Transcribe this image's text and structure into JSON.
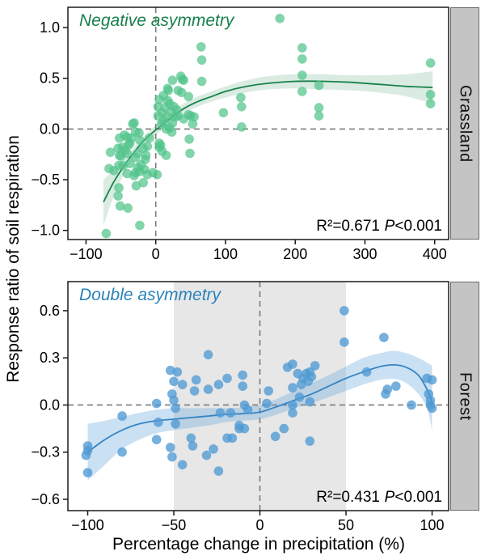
{
  "figure": {
    "y_axis_title": "Response ratio of soil respiration",
    "x_axis_title": "Percentage change in precipitation (%)"
  },
  "panels": [
    {
      "title": "Negative asymmetry",
      "title_color": "#17804b",
      "strip": "Grassland",
      "stats_r2": "R²=0.671",
      "stats_p": "P",
      "stats_pv": "<0.001"
    },
    {
      "title": "Double asymmetry",
      "title_color": "#2b82ba",
      "strip": "Forest",
      "stats_r2": "R²=0.431",
      "stats_p": "P",
      "stats_pv": "<0.001"
    }
  ],
  "chart_data": [
    {
      "type": "scatter",
      "name": "Grassland",
      "title": "Negative asymmetry",
      "xlabel": "Percentage change in precipitation (%)",
      "ylabel": "Response ratio of soil respiration",
      "stats": "R²=0.671 P<0.001",
      "xlim": [
        -126,
        420
      ],
      "ylim": [
        -1.09,
        1.2
      ],
      "x_ticks": {
        "values": [
          -100,
          0,
          100,
          200,
          300,
          400
        ],
        "labels": [
          "−100",
          "0",
          "100",
          "200",
          "300",
          "400"
        ]
      },
      "y_ticks": {
        "values": [
          -1.0,
          -0.5,
          0.0,
          0.5,
          1.0
        ],
        "labels": [
          "−1.0",
          "−0.5",
          "0.0",
          "0.5",
          "1.0"
        ]
      },
      "zero_lines": true,
      "point_color": "#52c48b",
      "point_opacity": 0.72,
      "line_color": "#17834b",
      "band_color": "rgba(23,131,75,0.16)",
      "points": [
        [
          -71,
          -1.03
        ],
        [
          -23,
          -0.95
        ],
        [
          -51,
          -0.76
        ],
        [
          -40,
          -0.78
        ],
        [
          -54,
          -0.66
        ],
        [
          -28,
          -0.56
        ],
        [
          -53,
          -0.58
        ],
        [
          -18,
          -0.53
        ],
        [
          -31,
          -0.46
        ],
        [
          -23,
          -0.42
        ],
        [
          -12,
          -0.45
        ],
        [
          -4,
          -0.43
        ],
        [
          2,
          -0.45
        ],
        [
          -29,
          -0.43
        ],
        [
          -41,
          -0.44
        ],
        [
          -37,
          -0.34
        ],
        [
          -47,
          -0.36
        ],
        [
          -26,
          -0.38
        ],
        [
          -16,
          -0.4
        ],
        [
          -60,
          -0.41
        ],
        [
          -67,
          -0.39
        ],
        [
          -53,
          -0.36
        ],
        [
          -50,
          -0.27
        ],
        [
          -54,
          -0.19
        ],
        [
          -65,
          -0.23
        ],
        [
          -44,
          -0.21
        ],
        [
          -39,
          -0.16
        ],
        [
          -21,
          -0.35
        ],
        [
          -26,
          -0.24
        ],
        [
          -18,
          -0.19
        ],
        [
          -14,
          -0.26
        ],
        [
          -12,
          -0.17
        ],
        [
          -41,
          -0.24
        ],
        [
          -48,
          -0.18
        ],
        [
          -37,
          -0.14
        ],
        [
          -29,
          -0.28
        ],
        [
          -52,
          -0.26
        ],
        [
          -15,
          -0.3
        ],
        [
          -52,
          -0.09
        ],
        [
          -45,
          -0.06
        ],
        [
          -35,
          -0.09
        ],
        [
          -29,
          -0.03
        ],
        [
          -33,
          0.05
        ],
        [
          -23,
          -0.11
        ],
        [
          -9,
          -0.09
        ],
        [
          -41,
          -0.08
        ],
        [
          -24,
          -0.04
        ],
        [
          -31,
          0.06
        ],
        [
          5,
          -0.18
        ],
        [
          9,
          -0.22
        ],
        [
          15,
          -0.26
        ],
        [
          7,
          -0.16
        ],
        [
          5,
          -0.14
        ],
        [
          23,
          -0.03
        ],
        [
          15,
          0.0
        ],
        [
          20,
          0.01
        ],
        [
          48,
          -0.1
        ],
        [
          49,
          -0.24
        ],
        [
          3,
          0.13
        ],
        [
          3,
          0.22
        ],
        [
          5,
          0.29
        ],
        [
          9,
          0.16
        ],
        [
          11,
          0.08
        ],
        [
          11,
          0.33
        ],
        [
          13,
          0.21
        ],
        [
          16,
          0.12
        ],
        [
          17,
          0.28
        ],
        [
          18,
          0.38
        ],
        [
          22,
          0.17
        ],
        [
          24,
          0.06
        ],
        [
          26,
          0.22
        ],
        [
          28,
          0.12
        ],
        [
          32,
          0.13
        ],
        [
          37,
          0.36
        ],
        [
          40,
          0.1
        ],
        [
          47,
          0.14
        ],
        [
          55,
          0.12
        ],
        [
          8,
          0.05
        ],
        [
          20,
          0.25
        ],
        [
          30,
          0.19
        ],
        [
          53,
          0.05
        ],
        [
          24,
          0.48
        ],
        [
          36,
          0.52
        ],
        [
          40,
          0.48
        ],
        [
          17,
          0.4
        ],
        [
          32,
          0.38
        ],
        [
          47,
          0.32
        ],
        [
          65,
          0.81
        ],
        [
          66,
          0.68
        ],
        [
          66,
          0.47
        ],
        [
          38,
          0.49
        ],
        [
          50,
          0.13
        ],
        [
          97,
          0.16
        ],
        [
          122,
          0.31
        ],
        [
          123,
          0.22
        ],
        [
          123,
          0.02
        ],
        [
          178,
          1.09
        ],
        [
          210,
          0.8
        ],
        [
          210,
          0.69
        ],
        [
          210,
          0.53
        ],
        [
          210,
          0.37
        ],
        [
          234,
          0.43
        ],
        [
          234,
          0.21
        ],
        [
          234,
          0.13
        ],
        [
          394,
          0.65
        ],
        [
          394,
          0.34
        ],
        [
          394,
          0.25
        ]
      ],
      "fit_curve": {
        "x": [
          -75,
          -60,
          -45,
          -30,
          -15,
          0,
          20,
          40,
          60,
          80,
          100,
          130,
          160,
          200,
          240,
          280,
          320,
          360,
          397
        ],
        "y": [
          -0.72,
          -0.52,
          -0.36,
          -0.22,
          -0.1,
          -0.01,
          0.1,
          0.2,
          0.27,
          0.32,
          0.37,
          0.42,
          0.45,
          0.47,
          0.47,
          0.46,
          0.44,
          0.42,
          0.41
        ]
      },
      "ci_band": {
        "x": [
          -75,
          -60,
          -45,
          -30,
          -15,
          0,
          20,
          40,
          60,
          80,
          100,
          130,
          160,
          200,
          240,
          280,
          320,
          360,
          397
        ],
        "upper": [
          -0.5,
          -0.4,
          -0.3,
          -0.17,
          -0.06,
          0.04,
          0.15,
          0.25,
          0.32,
          0.37,
          0.42,
          0.48,
          0.52,
          0.54,
          0.54,
          0.53,
          0.53,
          0.54,
          0.57
        ],
        "lower": [
          -0.95,
          -0.66,
          -0.44,
          -0.28,
          -0.15,
          -0.06,
          0.05,
          0.15,
          0.22,
          0.27,
          0.31,
          0.36,
          0.39,
          0.4,
          0.39,
          0.38,
          0.36,
          0.32,
          0.25
        ]
      }
    },
    {
      "type": "scatter",
      "name": "Forest",
      "title": "Double asymmetry",
      "xlabel": "Percentage change in precipitation (%)",
      "ylabel": "Response ratio of soil respiration",
      "stats": "R²=0.431 P<0.001",
      "xlim": [
        -111.5,
        109.6
      ],
      "ylim": [
        -0.672,
        0.785
      ],
      "x_ticks": {
        "values": [
          -100,
          -50,
          0,
          50,
          100
        ],
        "labels": [
          "−100",
          "−50",
          "0",
          "50",
          "100"
        ]
      },
      "y_ticks": {
        "values": [
          -0.6,
          -0.3,
          0.0,
          0.3,
          0.6
        ],
        "labels": [
          "−0.6",
          "−0.3",
          "0.0",
          "0.3",
          "0.6"
        ]
      },
      "zero_lines": true,
      "shaded_region_x": [
        -50,
        50
      ],
      "shaded_region_color": "#e7e7e7",
      "point_color": "#4f9ad4",
      "point_opacity": 0.78,
      "line_color": "#3585c4",
      "band_color": "rgba(90,160,218,0.32)",
      "points": [
        [
          -100,
          -0.26
        ],
        [
          -100,
          -0.29
        ],
        [
          -101,
          -0.32
        ],
        [
          -100,
          -0.43
        ],
        [
          -80,
          -0.07
        ],
        [
          -80,
          -0.3
        ],
        [
          -60,
          0.01
        ],
        [
          -59,
          -0.11
        ],
        [
          -60,
          -0.22
        ],
        [
          -52,
          0.22
        ],
        [
          -48,
          0.21
        ],
        [
          -50,
          0.15
        ],
        [
          -45,
          0.13
        ],
        [
          -51,
          0.07
        ],
        [
          -50,
          0.03
        ],
        [
          -49,
          -0.02
        ],
        [
          -49,
          -0.12
        ],
        [
          -52,
          -0.27
        ],
        [
          -51,
          -0.33
        ],
        [
          -45,
          -0.38
        ],
        [
          -37,
          0.16
        ],
        [
          -38,
          0.09
        ],
        [
          -30,
          0.1
        ],
        [
          -24,
          0.13
        ],
        [
          -19,
          0.17
        ],
        [
          -30,
          0.32
        ],
        [
          -10,
          0.19
        ],
        [
          -10,
          0.12
        ],
        [
          -9,
          0.0
        ],
        [
          -7,
          -0.03
        ],
        [
          -23,
          -0.05
        ],
        [
          -17,
          -0.05
        ],
        [
          -12,
          -0.13
        ],
        [
          -19,
          -0.21
        ],
        [
          -16,
          -0.21
        ],
        [
          -12,
          -0.15
        ],
        [
          -9,
          -0.15
        ],
        [
          -40,
          -0.21
        ],
        [
          -39,
          -0.26
        ],
        [
          -31,
          -0.32
        ],
        [
          -27,
          -0.28
        ],
        [
          -24,
          -0.42
        ],
        [
          5,
          0.09
        ],
        [
          4,
          0.01
        ],
        [
          9,
          -0.2
        ],
        [
          14,
          -0.15
        ],
        [
          16,
          0.24
        ],
        [
          19,
          0.26
        ],
        [
          22,
          0.2
        ],
        [
          24,
          0.13
        ],
        [
          19,
          0.11
        ],
        [
          25,
          0.17
        ],
        [
          27,
          0.2
        ],
        [
          29,
          0.21
        ],
        [
          28,
          0.15
        ],
        [
          30,
          0.18
        ],
        [
          32,
          0.25
        ],
        [
          19,
          0.0
        ],
        [
          19,
          -0.05
        ],
        [
          23,
          0.05
        ],
        [
          29,
          0.02
        ],
        [
          29,
          -0.23
        ],
        [
          49,
          0.6
        ],
        [
          49,
          0.4
        ],
        [
          62,
          0.21
        ],
        [
          72,
          0.43
        ],
        [
          73,
          0.07
        ],
        [
          74,
          0.1
        ],
        [
          79,
          0.12
        ],
        [
          88,
          0.0
        ],
        [
          97,
          0.17
        ],
        [
          100,
          0.16
        ],
        [
          98,
          0.07
        ],
        [
          99,
          0.03
        ],
        [
          99,
          0.0
        ],
        [
          100,
          -0.02
        ]
      ],
      "fit_curve": {
        "x": [
          -100,
          -90,
          -80,
          -70,
          -60,
          -50,
          -40,
          -30,
          -20,
          -10,
          0,
          10,
          20,
          30,
          40,
          50,
          60,
          70,
          78,
          85,
          92,
          97,
          100
        ],
        "y": [
          -0.3,
          -0.22,
          -0.16,
          -0.12,
          -0.1,
          -0.09,
          -0.08,
          -0.07,
          -0.06,
          -0.055,
          -0.045,
          -0.01,
          0.03,
          0.07,
          0.12,
          0.17,
          0.21,
          0.245,
          0.255,
          0.24,
          0.19,
          0.1,
          0.02
        ]
      },
      "ci_band": {
        "x": [
          -100,
          -90,
          -80,
          -70,
          -60,
          -50,
          -40,
          -30,
          -20,
          -10,
          0,
          10,
          20,
          30,
          40,
          50,
          60,
          70,
          78,
          85,
          92,
          97,
          100
        ],
        "upper": [
          -0.12,
          -0.1,
          -0.075,
          -0.05,
          -0.03,
          -0.02,
          -0.02,
          -0.02,
          -0.02,
          -0.015,
          0.0,
          0.04,
          0.09,
          0.14,
          0.19,
          0.245,
          0.3,
          0.33,
          0.345,
          0.33,
          0.3,
          0.27,
          0.25
        ],
        "lower": [
          -0.48,
          -0.38,
          -0.28,
          -0.22,
          -0.18,
          -0.16,
          -0.145,
          -0.13,
          -0.11,
          -0.1,
          -0.09,
          -0.06,
          -0.02,
          0.01,
          0.05,
          0.09,
          0.13,
          0.16,
          0.165,
          0.14,
          0.07,
          -0.02,
          -0.16
        ]
      }
    }
  ]
}
